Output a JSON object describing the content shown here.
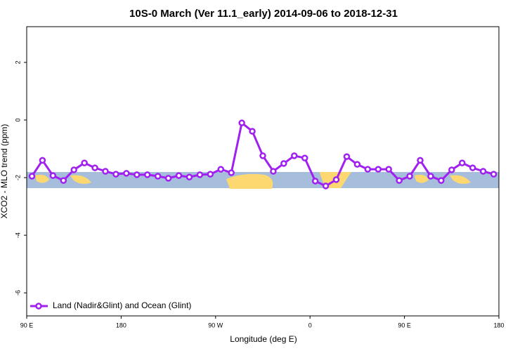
{
  "chart_data": {
    "type": "line",
    "title": "10S-0 March (Ver 11.1_early)   2014-09-06 to 2018-12-31",
    "xlabel": "Longitude (deg E)",
    "ylabel": "XCO2 - MLO trend (ppm)",
    "x": [
      95,
      105,
      115,
      125,
      135,
      145,
      155,
      165,
      175,
      185,
      195,
      205,
      215,
      225,
      235,
      245,
      255,
      265,
      275,
      285,
      295,
      305,
      315,
      325,
      335,
      345,
      355,
      365,
      375,
      385,
      395,
      405,
      415,
      425,
      435,
      445,
      455,
      465,
      475,
      485,
      495,
      505,
      515,
      525,
      535
    ],
    "series": [
      {
        "name": "Land (Nadir&Glint) and Ocean (Glint)",
        "color": "#a020f0",
        "values": [
          -1.95,
          -1.4,
          -1.93,
          -2.1,
          -1.73,
          -1.49,
          -1.66,
          -1.78,
          -1.88,
          -1.85,
          -1.9,
          -1.9,
          -1.95,
          -2.02,
          -1.93,
          -1.98,
          -1.9,
          -1.88,
          -1.71,
          -1.83,
          -0.1,
          -0.39,
          -1.24,
          -1.78,
          -1.51,
          -1.24,
          -1.32,
          -2.12,
          -2.29,
          -2.07,
          -1.27,
          -1.54,
          -1.71,
          -1.71,
          -1.71,
          -2.1,
          -1.95,
          -1.4,
          -1.95,
          -2.1,
          -1.73,
          -1.49,
          -1.66,
          -1.78,
          -1.88
        ]
      }
    ],
    "xlim": [
      90,
      540
    ],
    "ylim": [
      -6.8,
      3.24
    ],
    "xticks": [
      {
        "value": 90,
        "label": "90 E"
      },
      {
        "value": 180,
        "label": "180"
      },
      {
        "value": 270,
        "label": "90 W"
      },
      {
        "value": 360,
        "label": "0"
      },
      {
        "value": 450,
        "label": "90 E"
      },
      {
        "value": 540,
        "label": "180"
      }
    ],
    "yticks": [
      -6,
      -4,
      -2,
      0,
      2
    ],
    "legend": "bottom-left"
  }
}
